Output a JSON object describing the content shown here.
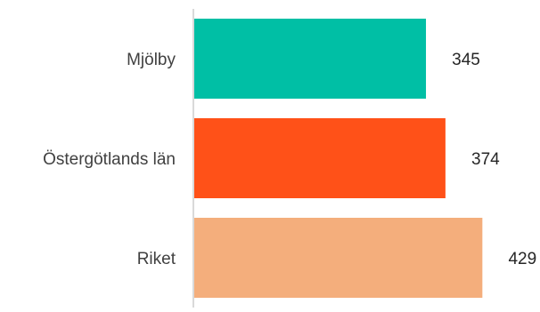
{
  "chart_data": {
    "type": "bar",
    "orientation": "horizontal",
    "categories": [
      "Mjölby",
      "Östergötlands län",
      "Riket"
    ],
    "values": [
      345,
      374,
      429
    ],
    "value_labels": [
      "345",
      "374",
      "429"
    ],
    "colors": [
      "#00BFA5",
      "#FF5118",
      "#F4AE7C"
    ],
    "axis_line_color": "#D9D9D9",
    "xlim": [
      0,
      500
    ],
    "grid": false,
    "legend": "none",
    "title": "",
    "xlabel": "",
    "ylabel": ""
  }
}
